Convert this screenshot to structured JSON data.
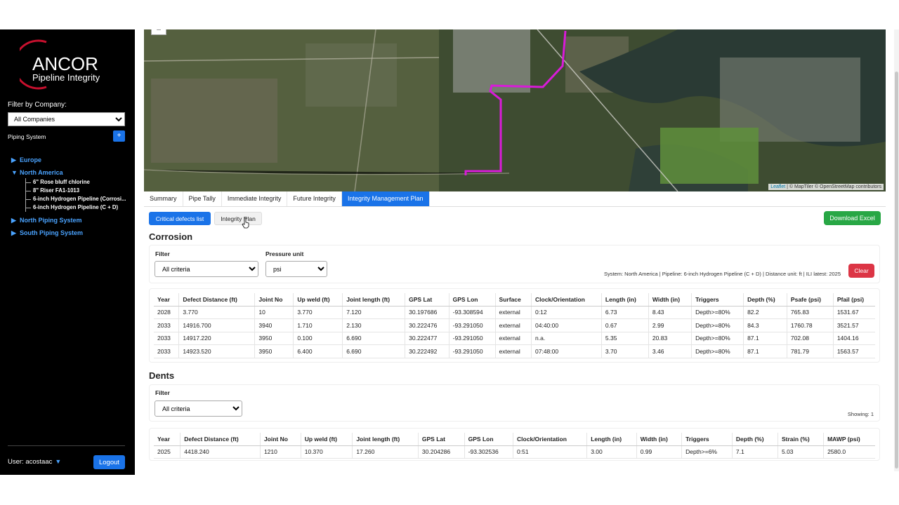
{
  "brand": {
    "name": "ANCOR",
    "subtitle": "Pipeline Integrity",
    "accent": "#c8102e"
  },
  "sidebar": {
    "filter_label": "Filter by Company:",
    "company_selected": "All Companies",
    "piping_system_label": "Piping System",
    "add_label": "+",
    "regions": [
      {
        "name": "Europe",
        "expanded": false,
        "children": []
      },
      {
        "name": "North America",
        "expanded": true,
        "children": [
          "6\" Rose bluff chlorine",
          "8\" Riser FA1-1013",
          "6-inch Hydrogen Pipeline (Corrosi...",
          "6-inch Hydrogen Pipeline (C + D)"
        ]
      },
      {
        "name": "North Piping System",
        "expanded": false,
        "children": []
      },
      {
        "name": "South Piping System",
        "expanded": false,
        "children": []
      }
    ],
    "user_label": "User: acostaac",
    "logout_label": "Logout"
  },
  "map": {
    "attribution_leaflet": "Leaflet",
    "attribution_rest": "| © MapTiler © OpenStreetMap contributors",
    "zoom_out": "−",
    "route_color": "#d81bd8"
  },
  "tabs": [
    {
      "label": "Summary",
      "active": false
    },
    {
      "label": "Pipe Tally",
      "active": false
    },
    {
      "label": "Immediate Integrity",
      "active": false
    },
    {
      "label": "Future Integrity",
      "active": false
    },
    {
      "label": "Integrity Management Plan",
      "active": true
    }
  ],
  "subnav": {
    "critical_label": "Critical defects list",
    "plan_label": "Integrity Plan"
  },
  "download_label": "Download Excel",
  "corrosion": {
    "title": "Corrosion",
    "filter_label": "Filter",
    "filter_selected": "All criteria",
    "pressure_label": "Pressure unit",
    "pressure_selected": "psi",
    "system_info": "System: North America | Pipeline: 6-inch Hydrogen Pipeline (C + D) | Distance unit: ft | ILI latest: 2025",
    "clear_label": "Clear",
    "headers": [
      "Year",
      "Defect Distance (ft)",
      "Joint No",
      "Up weld (ft)",
      "Joint length (ft)",
      "GPS Lat",
      "GPS Lon",
      "Surface",
      "Clock/Orientation",
      "Length (in)",
      "Width (in)",
      "Triggers",
      "Depth (%)",
      "Psafe (psi)",
      "Pfail (psi)"
    ],
    "rows": [
      [
        "2028",
        "3.770",
        "10",
        "3.770",
        "7.120",
        "30.197686",
        "-93.308594",
        "external",
        "0:12",
        "6.73",
        "8.43",
        "Depth>=80%",
        "82.2",
        "765.83",
        "1531.67"
      ],
      [
        "2033",
        "14916.700",
        "3940",
        "1.710",
        "2.130",
        "30.222476",
        "-93.291050",
        "external",
        "04:40:00",
        "0.67",
        "2.99",
        "Depth>=80%",
        "84.3",
        "1760.78",
        "3521.57"
      ],
      [
        "2033",
        "14917.220",
        "3950",
        "0.100",
        "6.690",
        "30.222477",
        "-93.291050",
        "external",
        "n.a.",
        "5.35",
        "20.83",
        "Depth>=80%",
        "87.1",
        "702.08",
        "1404.16"
      ],
      [
        "2033",
        "14923.520",
        "3950",
        "6.400",
        "6.690",
        "30.222492",
        "-93.291050",
        "external",
        "07:48:00",
        "3.70",
        "3.46",
        "Depth>=80%",
        "87.1",
        "781.79",
        "1563.57"
      ]
    ]
  },
  "dents": {
    "title": "Dents",
    "filter_label": "Filter",
    "filter_selected": "All criteria",
    "showing": "Showing: 1",
    "headers": [
      "Year",
      "Defect Distance (ft)",
      "Joint No",
      "Up weld (ft)",
      "Joint length (ft)",
      "GPS Lat",
      "GPS Lon",
      "Clock/Orientation",
      "Length (in)",
      "Width (in)",
      "Triggers",
      "Depth (%)",
      "Strain (%)",
      "MAWP (psi)"
    ],
    "rows": [
      [
        "2025",
        "4418.240",
        "1210",
        "10.370",
        "17.260",
        "30.204286",
        "-93.302536",
        "0:51",
        "3.00",
        "0.99",
        "Depth>=6%",
        "7.1",
        "5.03",
        "2580.0"
      ]
    ]
  }
}
